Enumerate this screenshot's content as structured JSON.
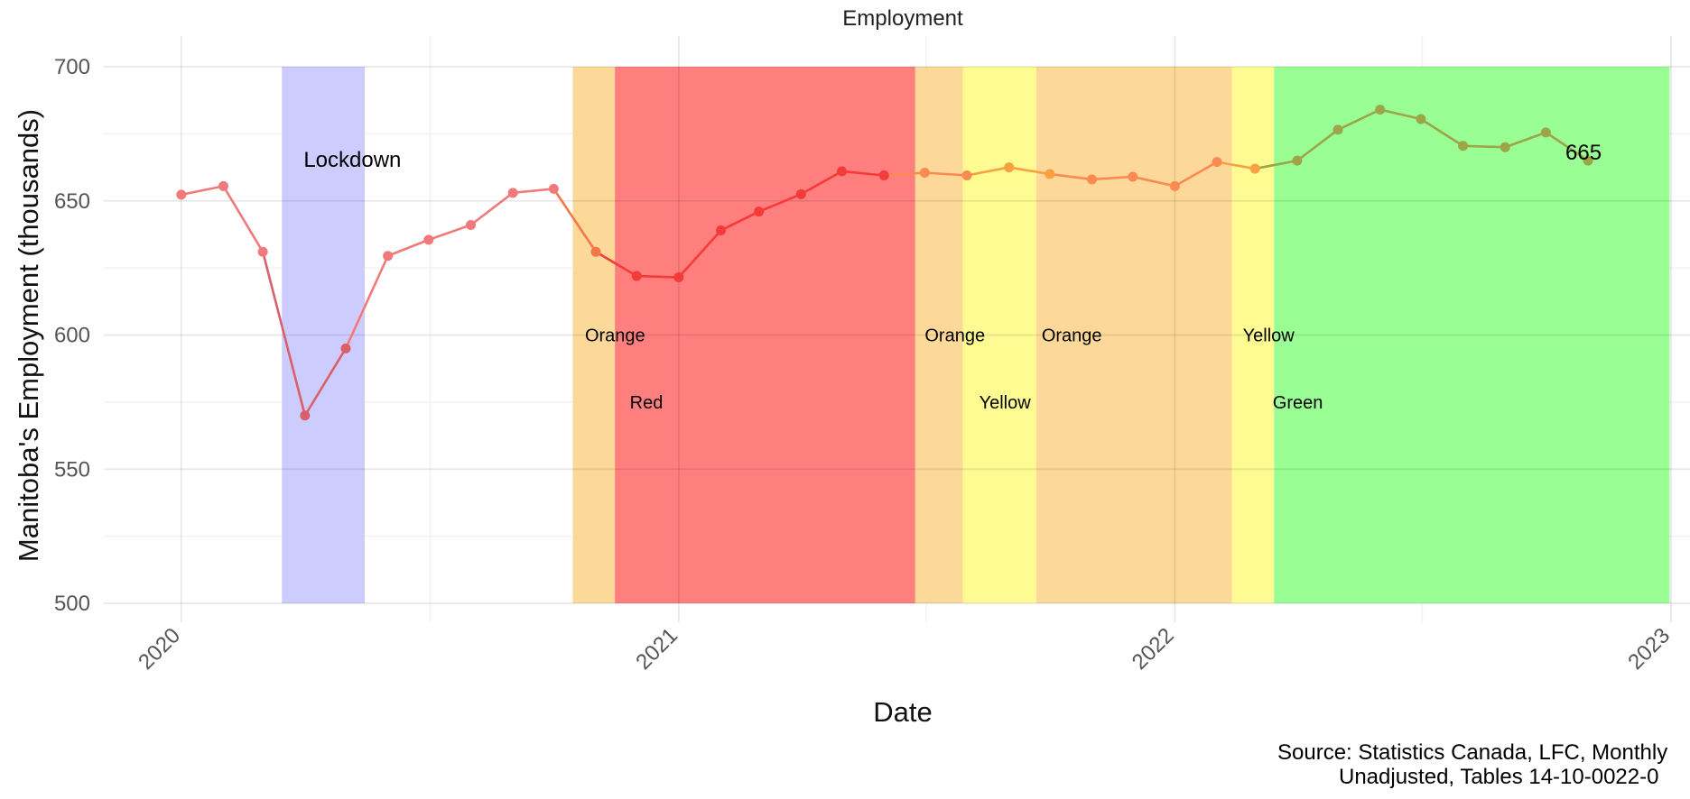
{
  "chart_data": {
    "type": "line",
    "title": "Employment",
    "xlabel": "Date",
    "ylabel": "Manitoba's Employment (thousands)",
    "ylim": [
      500,
      700
    ],
    "xlim": [
      "2019-11-05",
      "2023-01-15"
    ],
    "y_ticks": [
      500,
      550,
      600,
      650,
      700
    ],
    "x_ticks": [
      "2020-01-01",
      "2021-01-01",
      "2022-01-01",
      "2023-01-01"
    ],
    "x_tick_labels": [
      "2020",
      "2021",
      "2022",
      "2023"
    ],
    "grid": true,
    "series": [
      {
        "color": "#f08080",
        "points": [
          {
            "x": "2020-01-01",
            "y": 652.3,
            "color": "#f07a7a"
          },
          {
            "x": "2020-02-01",
            "y": 655.5,
            "color": "#f07a7a"
          },
          {
            "x": "2020-03-01",
            "y": 631,
            "color": "#f07a7a"
          },
          {
            "x": "2020-04-01",
            "y": 570,
            "color": "#d96068"
          },
          {
            "x": "2020-05-01",
            "y": 595,
            "color": "#d96068"
          },
          {
            "x": "2020-06-01",
            "y": 629.5,
            "color": "#f07a7a"
          },
          {
            "x": "2020-07-01",
            "y": 635.5,
            "color": "#f07a7a"
          },
          {
            "x": "2020-08-01",
            "y": 641,
            "color": "#f07a7a"
          },
          {
            "x": "2020-09-01",
            "y": 653,
            "color": "#f07a7a"
          },
          {
            "x": "2020-10-01",
            "y": 654.5,
            "color": "#f07a7a"
          },
          {
            "x": "2020-11-01",
            "y": 631,
            "color": "#f4784a"
          },
          {
            "x": "2020-12-01",
            "y": 622,
            "color": "#f53a3a"
          },
          {
            "x": "2021-01-01",
            "y": 621.5,
            "color": "#f53a3a"
          },
          {
            "x": "2021-02-01",
            "y": 639,
            "color": "#f53a3a"
          },
          {
            "x": "2021-03-01",
            "y": 646,
            "color": "#f53a3a"
          },
          {
            "x": "2021-04-01",
            "y": 652.5,
            "color": "#f53a3a"
          },
          {
            "x": "2021-05-01",
            "y": 661,
            "color": "#f53a3a"
          },
          {
            "x": "2021-06-01",
            "y": 659.5,
            "color": "#f53a3a"
          },
          {
            "x": "2021-07-01",
            "y": 660.5,
            "color": "#fb8a52"
          },
          {
            "x": "2021-08-01",
            "y": 659.5,
            "color": "#fb8a52"
          },
          {
            "x": "2021-09-01",
            "y": 662.5,
            "color": "#fba040"
          },
          {
            "x": "2021-10-01",
            "y": 660,
            "color": "#fba040"
          },
          {
            "x": "2021-11-01",
            "y": 658,
            "color": "#fb8a52"
          },
          {
            "x": "2021-12-01",
            "y": 659,
            "color": "#fb8a52"
          },
          {
            "x": "2022-01-01",
            "y": 655.5,
            "color": "#fb8a52"
          },
          {
            "x": "2022-02-01",
            "y": 664.5,
            "color": "#fb8a52"
          },
          {
            "x": "2022-03-01",
            "y": 662,
            "color": "#fba040"
          },
          {
            "x": "2022-04-01",
            "y": 665,
            "color": "#9ca547"
          },
          {
            "x": "2022-05-01",
            "y": 676.5,
            "color": "#9ca547"
          },
          {
            "x": "2022-06-01",
            "y": 684,
            "color": "#9ca547"
          },
          {
            "x": "2022-07-01",
            "y": 680.5,
            "color": "#9ca547"
          },
          {
            "x": "2022-08-01",
            "y": 670.5,
            "color": "#9ca547"
          },
          {
            "x": "2022-09-01",
            "y": 670,
            "color": "#9ca547"
          },
          {
            "x": "2022-10-01",
            "y": 675.5,
            "color": "#9ca547"
          },
          {
            "x": "2022-11-01",
            "y": 665,
            "color": "#9ca547"
          }
        ]
      }
    ],
    "bands": [
      {
        "label": "Lockdown",
        "start": "2020-03-15",
        "end": "2020-05-15",
        "color": "#ccccff",
        "label_x": "2020-03-31",
        "label_y": 665,
        "label_style": "big"
      },
      {
        "label": "Orange",
        "start": "2020-10-15",
        "end": "2020-11-15",
        "color": "#fcd998",
        "label_x": "2020-10-24",
        "label_y": 600
      },
      {
        "label": "Red",
        "start": "2020-11-15",
        "end": "2021-06-24",
        "color": "#ff7f7f",
        "label_x": "2020-11-26",
        "label_y": 575
      },
      {
        "label": "Orange",
        "start": "2021-06-24",
        "end": "2021-07-29",
        "color": "#fcd998",
        "label_x": "2021-07-01",
        "label_y": 600
      },
      {
        "label": "Yellow",
        "start": "2021-07-29",
        "end": "2021-09-21",
        "color": "#fdfb92",
        "label_x": "2021-08-10",
        "label_y": 575
      },
      {
        "label": "Orange",
        "start": "2021-09-21",
        "end": "2022-02-12",
        "color": "#fcd998",
        "label_x": "2021-09-25",
        "label_y": 600
      },
      {
        "label": "Yellow",
        "start": "2022-02-12",
        "end": "2022-03-15",
        "color": "#fdfb92",
        "label_x": "2022-02-20",
        "label_y": 600
      },
      {
        "label": "Green",
        "start": "2022-03-15",
        "end": "2022-12-31",
        "color": "#99fe93",
        "label_x": "2022-03-14",
        "label_y": 575
      }
    ],
    "annotations": [
      {
        "text": "665",
        "x": "2022-11-01",
        "y": 668
      }
    ],
    "caption": [
      "Source: Statistics Canada, LFC, Monthly",
      "Unadjusted, Tables 14-10-0022-0"
    ]
  }
}
